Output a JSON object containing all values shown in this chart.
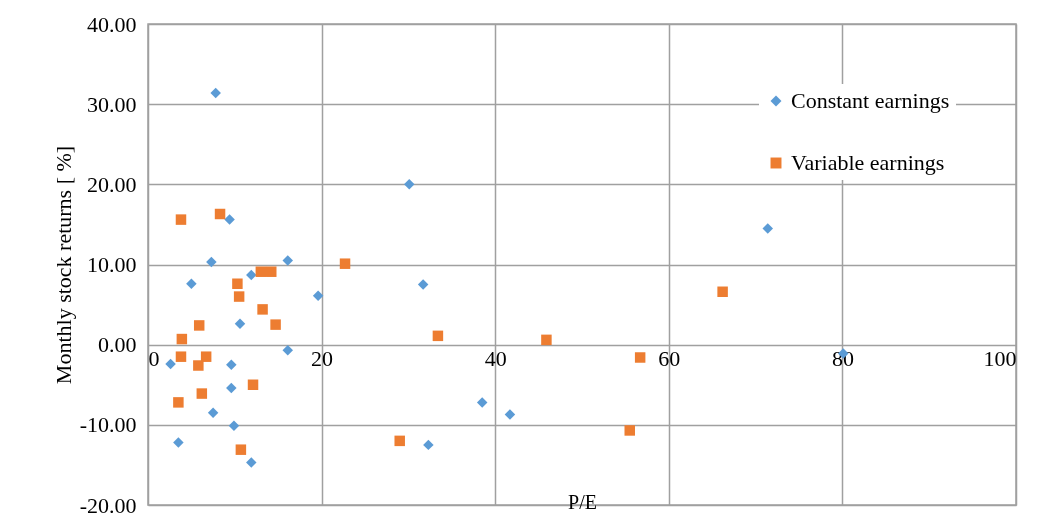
{
  "chart_data": {
    "type": "scatter",
    "xlabel": "P/E",
    "ylabel": "Monthly stock returns [ %]",
    "xlim": [
      0,
      100
    ],
    "xticks": [
      0,
      20,
      40,
      60,
      80,
      100
    ],
    "ylim": [
      -20,
      40
    ],
    "yticks": [
      {
        "value": -20,
        "label": "-20.00"
      },
      {
        "value": -10,
        "label": "-10.00"
      },
      {
        "value": 0,
        "label": "0.00"
      },
      {
        "value": 10,
        "label": "10.00"
      },
      {
        "value": 20,
        "label": "20.00"
      },
      {
        "value": 30,
        "label": "30.00"
      },
      {
        "value": 40,
        "label": "40.00"
      }
    ],
    "grid": true,
    "legend": "top right",
    "series": [
      {
        "name": "Constant earnings",
        "color": "#5b9bd5",
        "marker": "diamond",
        "x": [
          2.6,
          3.5,
          5.0,
          7.3,
          7.5,
          7.8,
          9.4,
          9.6,
          9.6,
          9.9,
          10.6,
          11.9,
          11.9,
          16.1,
          16.1,
          19.6,
          30.1,
          31.7,
          32.3,
          38.5,
          41.7,
          71.4,
          80.1
        ],
        "values": [
          -2.4,
          -12.2,
          7.6,
          10.3,
          -8.5,
          31.4,
          15.6,
          -2.5,
          -5.4,
          -10.1,
          2.6,
          8.7,
          -14.7,
          10.5,
          -0.7,
          6.1,
          20.0,
          7.5,
          -12.5,
          -7.2,
          -8.7,
          14.5,
          -1.1
        ]
      },
      {
        "name": "Variable earnings",
        "color": "#ed7d31",
        "marker": "square",
        "x": [
          3.5,
          3.8,
          3.9,
          3.8,
          5.8,
          5.9,
          6.2,
          6.7,
          8.3,
          10.3,
          10.5,
          10.7,
          12.1,
          13.0,
          13.2,
          14.2,
          14.7,
          22.7,
          29.0,
          33.4,
          45.9,
          56.7,
          55.5,
          66.2
        ],
        "values": [
          -7.2,
          15.6,
          0.7,
          -1.5,
          -2.6,
          2.4,
          -6.1,
          -1.5,
          16.3,
          7.6,
          6.0,
          -13.1,
          -5.0,
          9.1,
          4.4,
          9.1,
          2.5,
          10.1,
          -12.0,
          1.1,
          0.6,
          -1.6,
          -10.7,
          6.6
        ]
      }
    ]
  }
}
